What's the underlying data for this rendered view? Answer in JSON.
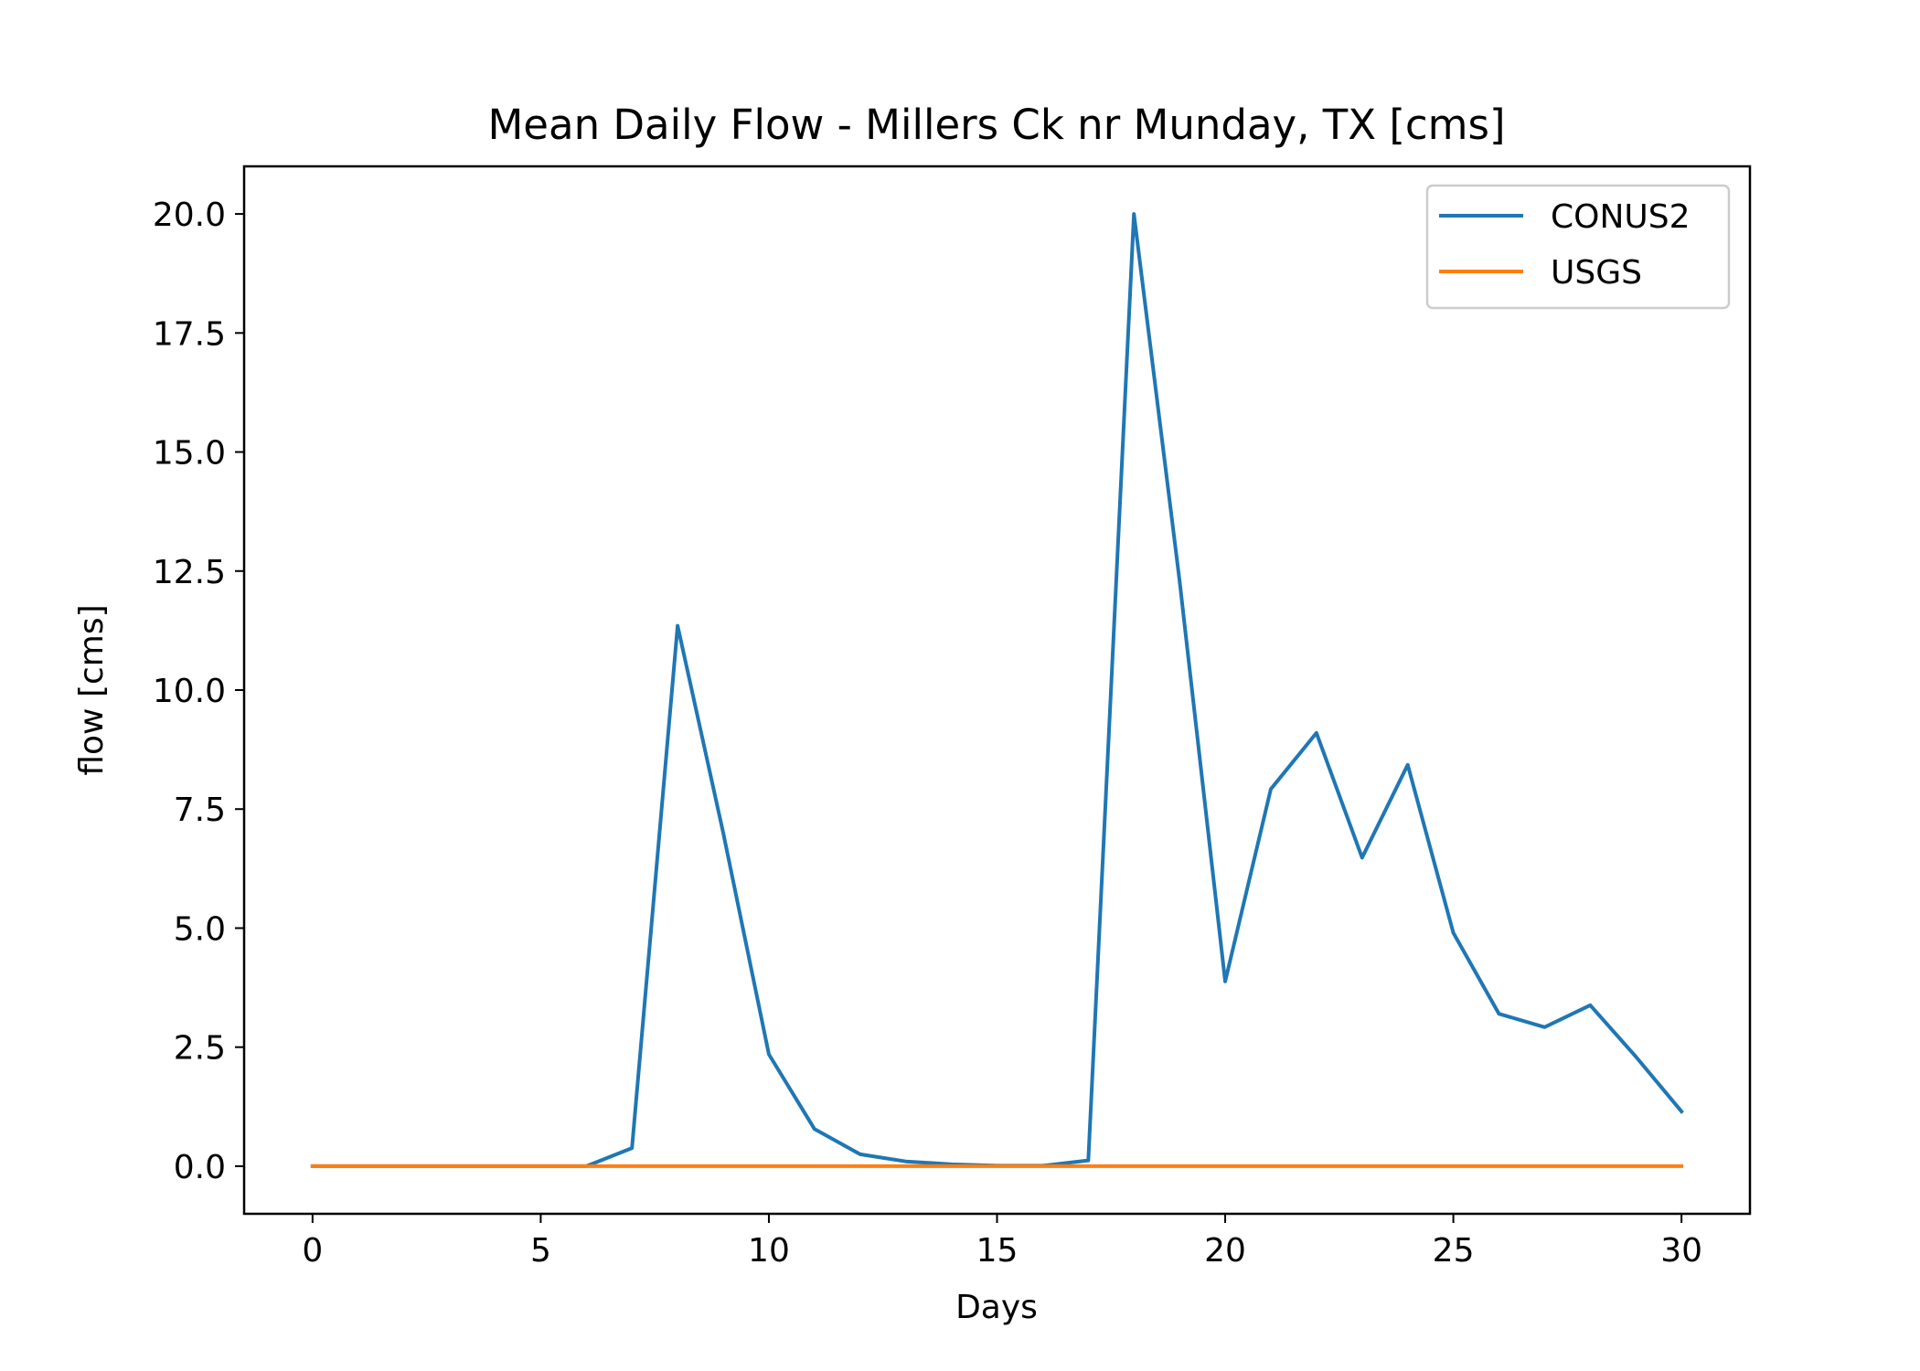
{
  "chart_data": {
    "type": "line",
    "title": "Mean Daily Flow - Millers Ck nr Munday, TX [cms]",
    "xlabel": "Days",
    "ylabel": "flow [cms]",
    "xlim": [
      -1.5,
      31.5
    ],
    "ylim": [
      -1.0,
      21.0
    ],
    "xticks": [
      0,
      5,
      10,
      15,
      20,
      25,
      30
    ],
    "xtick_labels": [
      "0",
      "5",
      "10",
      "15",
      "20",
      "25",
      "30"
    ],
    "yticks": [
      0.0,
      2.5,
      5.0,
      7.5,
      10.0,
      12.5,
      15.0,
      17.5,
      20.0
    ],
    "ytick_labels": [
      "0.0",
      "2.5",
      "5.0",
      "7.5",
      "10.0",
      "12.5",
      "15.0",
      "17.5",
      "20.0"
    ],
    "grid": false,
    "legend_position": "top-right",
    "x": [
      0,
      1,
      2,
      3,
      4,
      5,
      6,
      7,
      8,
      9,
      10,
      11,
      12,
      13,
      14,
      15,
      16,
      17,
      18,
      19,
      20,
      21,
      22,
      23,
      24,
      25,
      26,
      27,
      28,
      29,
      30
    ],
    "series": [
      {
        "name": "CONUS2",
        "color": "#1f77b4",
        "values": [
          0,
          0,
          0,
          0,
          0,
          0,
          0,
          0.38,
          11.35,
          7.0,
          2.35,
          0.78,
          0.25,
          0.1,
          0.04,
          0.01,
          0.01,
          0.12,
          20.0,
          12.3,
          3.88,
          7.92,
          9.1,
          6.48,
          8.43,
          4.9,
          3.2,
          2.92,
          3.38,
          2.3,
          1.15
        ]
      },
      {
        "name": "USGS",
        "color": "#ff7f0e",
        "values": [
          0,
          0,
          0,
          0,
          0,
          0,
          0,
          0,
          0,
          0,
          0,
          0,
          0,
          0,
          0,
          0,
          0,
          0,
          0,
          0,
          0,
          0,
          0,
          0,
          0,
          0,
          0,
          0,
          0,
          0,
          0
        ]
      }
    ]
  }
}
